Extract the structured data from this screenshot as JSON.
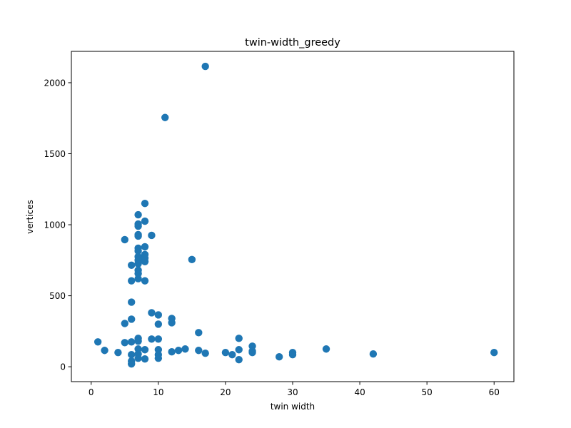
{
  "chart_data": {
    "type": "scatter",
    "title": "twin-width_greedy",
    "xlabel": "twin width",
    "ylabel": "vertices",
    "xlim": [
      -2.95,
      62.95
    ],
    "ylim": [
      -104.8,
      2220.8
    ],
    "xticks": [
      0,
      10,
      20,
      30,
      40,
      50,
      60
    ],
    "yticks": [
      0,
      500,
      1000,
      1500,
      2000
    ],
    "grid": false,
    "legend": "none",
    "marker_color": "#1f77b4",
    "series": [
      {
        "points": [
          [
            1,
            175
          ],
          [
            2,
            115
          ],
          [
            4,
            100
          ],
          [
            5,
            895
          ],
          [
            5,
            305
          ],
          [
            5,
            170
          ],
          [
            6,
            715
          ],
          [
            6,
            605
          ],
          [
            6,
            455
          ],
          [
            6,
            335
          ],
          [
            6,
            175
          ],
          [
            6,
            85
          ],
          [
            6,
            40
          ],
          [
            6,
            20
          ],
          [
            7,
            1070
          ],
          [
            7,
            1005
          ],
          [
            7,
            990
          ],
          [
            7,
            930
          ],
          [
            7,
            920
          ],
          [
            7,
            835
          ],
          [
            7,
            815
          ],
          [
            7,
            775
          ],
          [
            7,
            750
          ],
          [
            7,
            725
          ],
          [
            7,
            680
          ],
          [
            7,
            655
          ],
          [
            7,
            620
          ],
          [
            7,
            200
          ],
          [
            7,
            180
          ],
          [
            7,
            125
          ],
          [
            7,
            90
          ],
          [
            7,
            60
          ],
          [
            8,
            1150
          ],
          [
            8,
            1025
          ],
          [
            8,
            845
          ],
          [
            8,
            790
          ],
          [
            8,
            765
          ],
          [
            8,
            740
          ],
          [
            8,
            605
          ],
          [
            8,
            120
          ],
          [
            8,
            55
          ],
          [
            9,
            925
          ],
          [
            9,
            380
          ],
          [
            9,
            195
          ],
          [
            10,
            365
          ],
          [
            10,
            300
          ],
          [
            10,
            195
          ],
          [
            10,
            120
          ],
          [
            10,
            85
          ],
          [
            10,
            60
          ],
          [
            11,
            1755
          ],
          [
            12,
            340
          ],
          [
            12,
            310
          ],
          [
            12,
            105
          ],
          [
            13,
            115
          ],
          [
            14,
            125
          ],
          [
            15,
            755
          ],
          [
            16,
            240
          ],
          [
            16,
            115
          ],
          [
            17,
            2115
          ],
          [
            17,
            95
          ],
          [
            20,
            100
          ],
          [
            21,
            85
          ],
          [
            22,
            200
          ],
          [
            22,
            120
          ],
          [
            22,
            50
          ],
          [
            24,
            145
          ],
          [
            24,
            110
          ],
          [
            24,
            100
          ],
          [
            28,
            70
          ],
          [
            30,
            100
          ],
          [
            30,
            85
          ],
          [
            35,
            125
          ],
          [
            42,
            90
          ],
          [
            60,
            100
          ]
        ]
      }
    ]
  }
}
